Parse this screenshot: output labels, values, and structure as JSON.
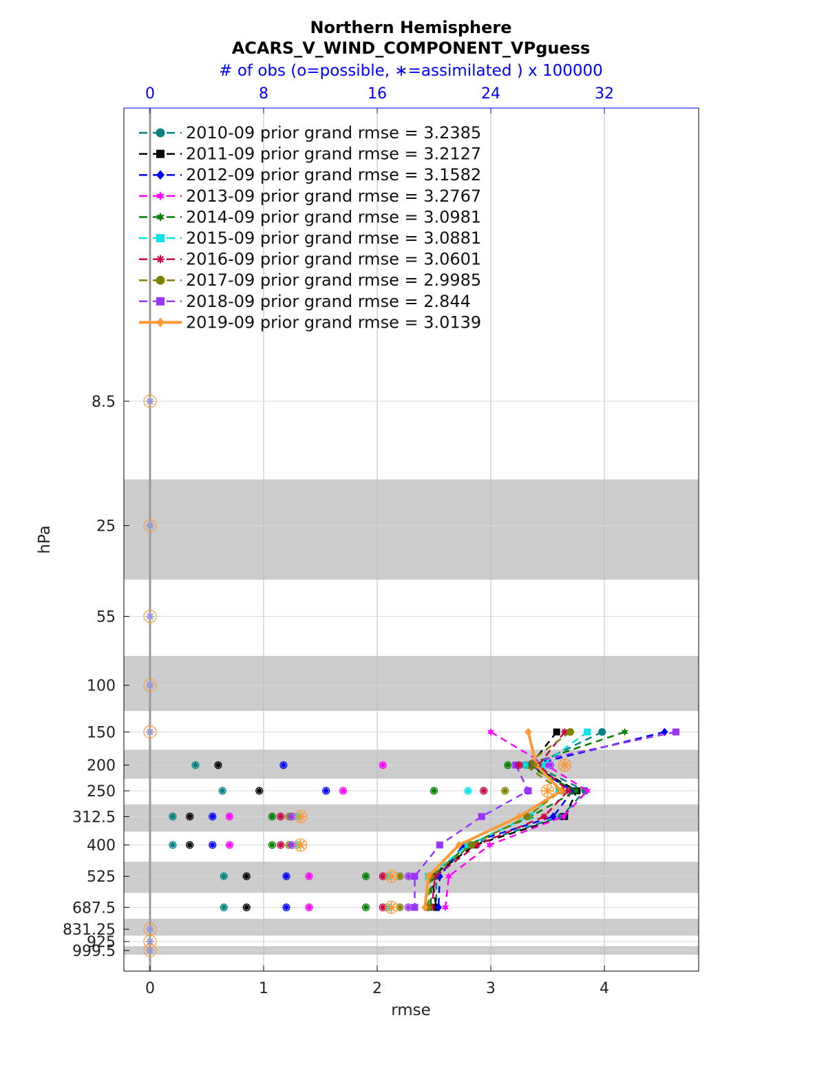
{
  "chart_data": {
    "type": "line",
    "title": "Northern Hemisphere",
    "subtitle": "ACARS_V_WIND_COMPONENT_VPguess",
    "top_axis_label": "# of obs (o=possible, ∗=assimilated ) x 100000",
    "xlabel": "rmse",
    "ylabel": "hPa",
    "xlim": [
      -0.23,
      4.83
    ],
    "x_ticks": [
      "0",
      "1",
      "2",
      "3",
      "4"
    ],
    "top_xlim": [
      -1.84,
      38.64
    ],
    "top_ticks": [
      "0",
      "8",
      "16",
      "24",
      "32"
    ],
    "y_scale": "log",
    "y_levels": [
      8.5,
      25,
      55,
      100,
      150,
      200,
      250,
      312.5,
      400,
      525,
      687.5,
      831.25,
      925,
      999.5
    ],
    "y_tick_labels": [
      "8.5",
      "25",
      "55",
      "100",
      "150",
      "200",
      "250",
      "312.5",
      "400",
      "525",
      "687.5",
      "831.25",
      "925",
      "999.5"
    ],
    "band_edges": [
      [
        16.75,
        40
      ],
      [
        77.5,
        125
      ],
      [
        175,
        225
      ],
      [
        281.25,
        356.25
      ],
      [
        462.5,
        606.25
      ],
      [
        759.375,
        878.125
      ],
      [
        962.25,
        1037
      ]
    ],
    "legend_position": "top-left",
    "grid": true,
    "series": [
      {
        "name": "2010-09 prior grand rmse = 3.2385",
        "color": "#008080",
        "marker": "circle",
        "style": "dashed",
        "rmse": [
          3.98,
          3.38,
          3.83,
          3.62,
          2.82,
          2.52,
          2.52
        ],
        "possible": [
          0,
          0,
          0,
          0,
          0,
          0,
          3.7,
          5.1,
          3.1,
          3.2,
          3.6,
          2.4,
          0,
          0,
          0
        ],
        "assimilated": [
          0,
          0,
          0,
          0,
          0,
          0,
          3.7,
          5.1,
          3.1,
          3.2,
          3.6,
          2.4,
          0,
          0,
          0
        ]
      },
      {
        "name": "2011-09 prior grand rmse = 3.2127",
        "color": "#000000",
        "marker": "square",
        "style": "dashed",
        "rmse": [
          3.58,
          3.35,
          3.76,
          3.65,
          2.86,
          2.48,
          2.52
        ],
        "possible": [],
        "assimilated": []
      },
      {
        "name": "2012-09 prior grand rmse = 3.1582",
        "color": "#0000ff",
        "marker": "diamond",
        "style": "dashed",
        "rmse": [
          4.53,
          3.35,
          3.72,
          3.55,
          2.76,
          2.55,
          2.54
        ],
        "possible": [],
        "assimilated": []
      },
      {
        "name": "2013-09 prior grand rmse = 3.2767",
        "color": "#ff00ff",
        "marker": "hexagram",
        "style": "dashed",
        "rmse": [
          3.0,
          3.49,
          3.85,
          3.64,
          2.99,
          2.63,
          2.6
        ],
        "possible": [],
        "assimilated": []
      },
      {
        "name": "2014-09 prior grand rmse = 3.0981",
        "color": "#008000",
        "marker": "hexagram",
        "style": "dashed",
        "rmse": [
          4.18,
          3.31,
          3.75,
          3.35,
          2.8,
          2.48,
          2.47
        ],
        "possible": [],
        "assimilated": []
      },
      {
        "name": "2015-09 prior grand rmse = 3.0881",
        "color": "#00e5e5",
        "marker": "square",
        "style": "dashed",
        "rmse": [
          3.85,
          3.45,
          3.6,
          3.33,
          2.8,
          2.45,
          2.44
        ],
        "possible": [],
        "assimilated": []
      },
      {
        "name": "2016-09 prior grand rmse = 3.0601",
        "color": "#cc0044",
        "marker": "asterisk",
        "style": "dashed",
        "rmse": [
          3.65,
          3.42,
          3.68,
          3.47,
          2.88,
          2.51,
          2.48
        ],
        "possible": [],
        "assimilated": []
      },
      {
        "name": "2017-09 prior grand rmse = 2.9985",
        "color": "#808000",
        "marker": "circle",
        "style": "dashed",
        "rmse": [
          3.7,
          3.3,
          3.62,
          3.32,
          2.83,
          2.47,
          2.45
        ],
        "possible": [],
        "assimilated": []
      },
      {
        "name": "2018-09 prior grand rmse = 2.844",
        "color": "#9933ff",
        "marker": "square",
        "style": "dashed",
        "rmse": [
          4.63,
          3.22,
          3.33,
          2.92,
          2.55,
          2.33,
          2.33
        ],
        "possible": [],
        "assimilated": []
      },
      {
        "name": "2019-09 prior grand rmse = 3.0139",
        "color": "#ff9933",
        "marker": "diamond",
        "style": "solid",
        "rmse": [
          3.33,
          3.4,
          3.62,
          3.25,
          2.72,
          2.45,
          2.42
        ],
        "possible": [],
        "assimilated": []
      }
    ],
    "rmse_levels": [
      150,
      200,
      250,
      312.5,
      400,
      525,
      687.5
    ],
    "obs_levels": [
      200,
      250,
      312.5,
      400,
      525,
      687.5
    ],
    "obs_counts": [
      [
        3.2,
        5.1,
        1.6,
        1.6,
        5.2,
        5.2
      ],
      [
        4.8,
        7.7,
        2.8,
        2.8,
        6.8,
        6.8
      ],
      [
        9.4,
        12.4,
        4.4,
        4.4,
        9.6,
        9.6
      ],
      [
        16.4,
        13.6,
        5.6,
        5.6,
        11.2,
        11.2
      ],
      [
        25.2,
        20.0,
        8.6,
        8.6,
        15.2,
        15.2
      ],
      [
        26.4,
        22.4,
        10.4,
        10.4,
        16.8,
        16.8
      ],
      [
        26.0,
        23.5,
        9.2,
        9.2,
        16.4,
        16.4
      ],
      [
        27.0,
        25.0,
        9.8,
        9.8,
        17.6,
        17.6
      ],
      [
        28.2,
        26.6,
        10.0,
        10.0,
        18.2,
        18.2
      ],
      [
        29.2,
        28.0,
        10.6,
        10.6,
        17.0,
        17.0
      ]
    ],
    "obs_counts_note_levels": [
      200,
      250,
      312.5,
      400,
      525,
      687.5
    ]
  }
}
